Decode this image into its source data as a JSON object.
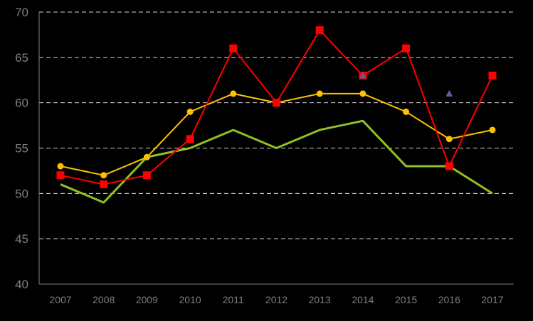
{
  "chart_data": {
    "type": "line",
    "categories": [
      "2007",
      "2008",
      "2009",
      "2010",
      "2011",
      "2012",
      "2013",
      "2014",
      "2015",
      "2016",
      "2017"
    ],
    "ylim": [
      40,
      70
    ],
    "yticks": [
      40,
      45,
      50,
      55,
      60,
      65,
      70
    ],
    "ytick_labels": [
      "40",
      "45",
      "50",
      "55",
      "60",
      "65",
      "70"
    ],
    "grid": "horizontal dashed",
    "background": "#000000",
    "axis_color": "#7f7f7f",
    "series": [
      {
        "values": [
          51,
          49,
          54,
          55,
          57,
          55,
          57,
          58,
          53,
          53,
          50
        ],
        "color": "#92c020",
        "marker": "none"
      },
      {
        "values": [
          53,
          52,
          54,
          59,
          61,
          60,
          61,
          61,
          59,
          56,
          57
        ],
        "color": "#ffc000",
        "marker": "circle"
      },
      {
        "values": [
          52,
          51,
          52,
          56,
          66,
          60,
          68,
          63,
          66,
          53,
          63
        ],
        "color": "#ff0000",
        "marker": "square"
      },
      {
        "values": [
          null,
          null,
          null,
          null,
          null,
          null,
          null,
          63,
          null,
          61,
          null
        ],
        "color": "#5b5ea6",
        "marker": "triangle"
      }
    ]
  }
}
